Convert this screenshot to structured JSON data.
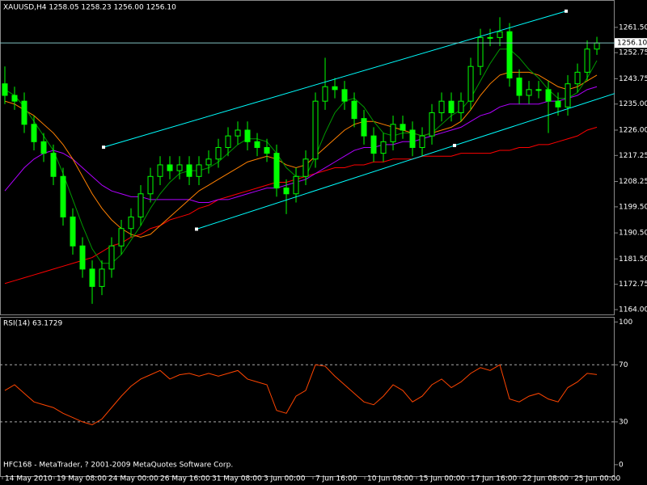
{
  "chart_data": [
    {
      "type": "candlestick",
      "title": "XAUUSD,H4  1258.05 1258.23 1256.00 1256.10",
      "color": "#00ff00",
      "xlim": [
        -0.5,
        62.83
      ],
      "xticks": [
        {
          "value": -0.25,
          "label": "14 May 2010"
        },
        {
          "value": 5.08,
          "label": "19 May 08:00"
        },
        {
          "value": 10.42,
          "label": "24 May 00:00"
        },
        {
          "value": 15.75,
          "label": "26 May 16:00"
        },
        {
          "value": 21.08,
          "label": "31 May 08:00"
        },
        {
          "value": 26.42,
          "label": "3 Jun 00:00"
        },
        {
          "value": 31.75,
          "label": "7 Jun 16:00"
        },
        {
          "value": 37.08,
          "label": "10 Jun 08:00"
        },
        {
          "value": 42.42,
          "label": "15 Jun 00:00"
        },
        {
          "value": 47.75,
          "label": "17 Jun 16:00"
        },
        {
          "value": 53.08,
          "label": "22 Jun 08:00"
        },
        {
          "value": 58.42,
          "label": "25 Jun 00:00"
        }
      ],
      "ylim": [
        1162.33,
        1270.67
      ],
      "yticks": [
        {
          "value": 1164,
          "label": "1164.00"
        },
        {
          "value": 1172.75,
          "label": "1172.75"
        },
        {
          "value": 1181.5,
          "label": "1181.50"
        },
        {
          "value": 1190.5,
          "label": "1190.50"
        },
        {
          "value": 1199.5,
          "label": "1199.50"
        },
        {
          "value": 1208.25,
          "label": "1208.25"
        },
        {
          "value": 1217.25,
          "label": "1217.25"
        },
        {
          "value": 1226,
          "label": "1226.00"
        },
        {
          "value": 1235,
          "label": "1235.00"
        },
        {
          "value": 1243.75,
          "label": "1243.75"
        },
        {
          "value": 1252.75,
          "label": "1252.75"
        },
        {
          "value": 1261.5,
          "label": "1261.50"
        }
      ],
      "open": [
        1242,
        1238,
        1236,
        1228,
        1222,
        1218,
        1210,
        1196,
        1186,
        1178,
        1172,
        1178,
        1186,
        1192,
        1196,
        1204,
        1210,
        1214,
        1212,
        1214,
        1210,
        1214,
        1216,
        1220,
        1224,
        1226,
        1222,
        1220,
        1218,
        1206,
        1204,
        1210,
        1216,
        1236,
        1241,
        1240,
        1236,
        1230,
        1224,
        1218,
        1222,
        1228,
        1226,
        1220,
        1224,
        1232,
        1236,
        1232,
        1236,
        1248,
        1258,
        1258,
        1260,
        1244,
        1238,
        1240,
        1240,
        1236,
        1234,
        1242,
        1246,
        1254
      ],
      "high": [
        1248,
        1241,
        1239,
        1231,
        1225,
        1221,
        1213,
        1199,
        1189,
        1181,
        1181,
        1189,
        1195,
        1199,
        1207,
        1213,
        1217,
        1217,
        1217,
        1217,
        1217,
        1219,
        1223,
        1227,
        1229,
        1229,
        1225,
        1223,
        1221,
        1209,
        1213,
        1219,
        1239,
        1251,
        1244,
        1243,
        1239,
        1233,
        1227,
        1225,
        1231,
        1231,
        1229,
        1227,
        1235,
        1239,
        1239,
        1239,
        1251,
        1261,
        1261,
        1265,
        1263,
        1247,
        1243,
        1243,
        1243,
        1239,
        1245,
        1249,
        1257,
        1258.23
      ],
      "low": [
        1235,
        1233,
        1225,
        1219,
        1215,
        1207,
        1193,
        1183,
        1175,
        1166,
        1169,
        1175,
        1183,
        1189,
        1193,
        1201,
        1207,
        1209,
        1209,
        1207,
        1207,
        1211,
        1213,
        1217,
        1221,
        1219,
        1217,
        1215,
        1203,
        1197,
        1201,
        1207,
        1213,
        1233,
        1237,
        1233,
        1227,
        1221,
        1215,
        1215,
        1219,
        1223,
        1217,
        1217,
        1221,
        1229,
        1229,
        1229,
        1233,
        1245,
        1255,
        1255,
        1241,
        1235,
        1235,
        1237,
        1225,
        1231,
        1231,
        1239,
        1243,
        1252
      ],
      "close": [
        1238,
        1236,
        1228,
        1222,
        1218,
        1210,
        1196,
        1186,
        1178,
        1172,
        1178,
        1186,
        1192,
        1196,
        1204,
        1210,
        1214,
        1212,
        1214,
        1210,
        1214,
        1216,
        1220,
        1224,
        1226,
        1222,
        1220,
        1218,
        1206,
        1204,
        1210,
        1216,
        1236,
        1241,
        1240,
        1236,
        1230,
        1224,
        1218,
        1222,
        1228,
        1226,
        1220,
        1224,
        1232,
        1236,
        1232,
        1236,
        1248,
        1258,
        1258,
        1260,
        1244,
        1238,
        1240,
        1240,
        1236,
        1234,
        1242,
        1246,
        1254,
        1256.1
      ],
      "lines": [
        {
          "color": "#ff0000",
          "values": [
            1173,
            1174,
            1175,
            1176,
            1177,
            1178,
            1179,
            1180,
            1181,
            1182,
            1184,
            1186,
            1187,
            1189,
            1190,
            1192,
            1193,
            1195,
            1196,
            1197,
            1199,
            1200,
            1202,
            1203,
            1204,
            1205,
            1206,
            1207,
            1208,
            1208,
            1209,
            1210,
            1211,
            1212,
            1213,
            1213,
            1214,
            1214,
            1215,
            1215,
            1216,
            1216,
            1216,
            1217,
            1217,
            1217,
            1217,
            1218,
            1218,
            1218,
            1218,
            1219,
            1219,
            1220,
            1220,
            1221,
            1221,
            1222,
            1223,
            1224,
            1226,
            1227
          ]
        },
        {
          "color": "#b000ff",
          "values": [
            1205,
            1209,
            1213,
            1216,
            1218,
            1219,
            1218,
            1216,
            1213,
            1210,
            1207,
            1205,
            1204,
            1203,
            1203,
            1202,
            1202,
            1202,
            1202,
            1202,
            1201,
            1201,
            1202,
            1202,
            1203,
            1204,
            1205,
            1206,
            1206,
            1207,
            1208,
            1209,
            1211,
            1213,
            1215,
            1217,
            1219,
            1220,
            1220,
            1221,
            1221,
            1222,
            1222,
            1223,
            1224,
            1225,
            1226,
            1227,
            1229,
            1231,
            1232,
            1234,
            1235,
            1235,
            1235,
            1235,
            1236,
            1236,
            1237,
            1238,
            1240,
            1241
          ]
        },
        {
          "color": "#ff8000",
          "values": [
            1236,
            1235,
            1233,
            1231,
            1228,
            1225,
            1221,
            1216,
            1210,
            1204,
            1199,
            1195,
            1192,
            1190,
            1189,
            1190,
            1193,
            1196,
            1199,
            1202,
            1205,
            1207,
            1209,
            1211,
            1213,
            1215,
            1216,
            1217,
            1216,
            1214,
            1213,
            1214,
            1217,
            1220,
            1223,
            1226,
            1228,
            1229,
            1229,
            1228,
            1227,
            1226,
            1225,
            1224,
            1225,
            1226,
            1227,
            1229,
            1233,
            1238,
            1242,
            1245,
            1246,
            1246,
            1246,
            1245,
            1243,
            1241,
            1240,
            1241,
            1243,
            1245
          ]
        },
        {
          "color": "#009900",
          "values": [
            1240,
            1238,
            1234,
            1229,
            1224,
            1219,
            1211,
            1202,
            1193,
            1185,
            1180,
            1180,
            1183,
            1188,
            1193,
            1199,
            1204,
            1208,
            1211,
            1212,
            1212,
            1213,
            1215,
            1218,
            1221,
            1223,
            1223,
            1222,
            1218,
            1213,
            1210,
            1210,
            1217,
            1225,
            1232,
            1236,
            1237,
            1234,
            1229,
            1225,
            1224,
            1225,
            1225,
            1224,
            1225,
            1228,
            1231,
            1233,
            1237,
            1243,
            1249,
            1254,
            1254,
            1251,
            1247,
            1244,
            1240,
            1237,
            1237,
            1239,
            1244,
            1250
          ]
        }
      ],
      "trendlines": [
        {
          "color": "#00ffff",
          "x": [
            10.17,
            57.83
          ],
          "y": [
            1220.1,
            1267.1
          ],
          "ray": false
        },
        {
          "color": "#00ffff",
          "x": [
            19.75,
            46.33
          ],
          "y": [
            1191.8,
            1220.7
          ],
          "ray": true
        }
      ],
      "last_price": {
        "value": 1256.1,
        "label": "1256.10"
      }
    },
    {
      "type": "line",
      "title": "RSI(14) 63.1729",
      "color": "#ff4500",
      "ylim": [
        -8,
        103
      ],
      "yticks": [
        100,
        70,
        30,
        0
      ],
      "levels": [
        70,
        30
      ],
      "values": [
        52,
        56,
        50,
        44,
        42,
        40,
        36,
        33,
        30,
        28,
        32,
        40,
        48,
        55,
        60,
        63,
        66,
        60,
        63,
        64,
        62,
        64,
        62,
        64,
        66,
        60,
        58,
        56,
        38,
        36,
        48,
        52,
        70,
        69,
        62,
        56,
        50,
        44,
        42,
        48,
        56,
        52,
        44,
        48,
        56,
        60,
        54,
        58,
        64,
        68,
        66,
        70,
        46,
        44,
        48,
        50,
        46,
        44,
        54,
        58,
        64,
        63.1729
      ]
    }
  ],
  "footer": "HFC168 - MetaTrader, ? 2001-2009 MetaQuotes Software Corp."
}
